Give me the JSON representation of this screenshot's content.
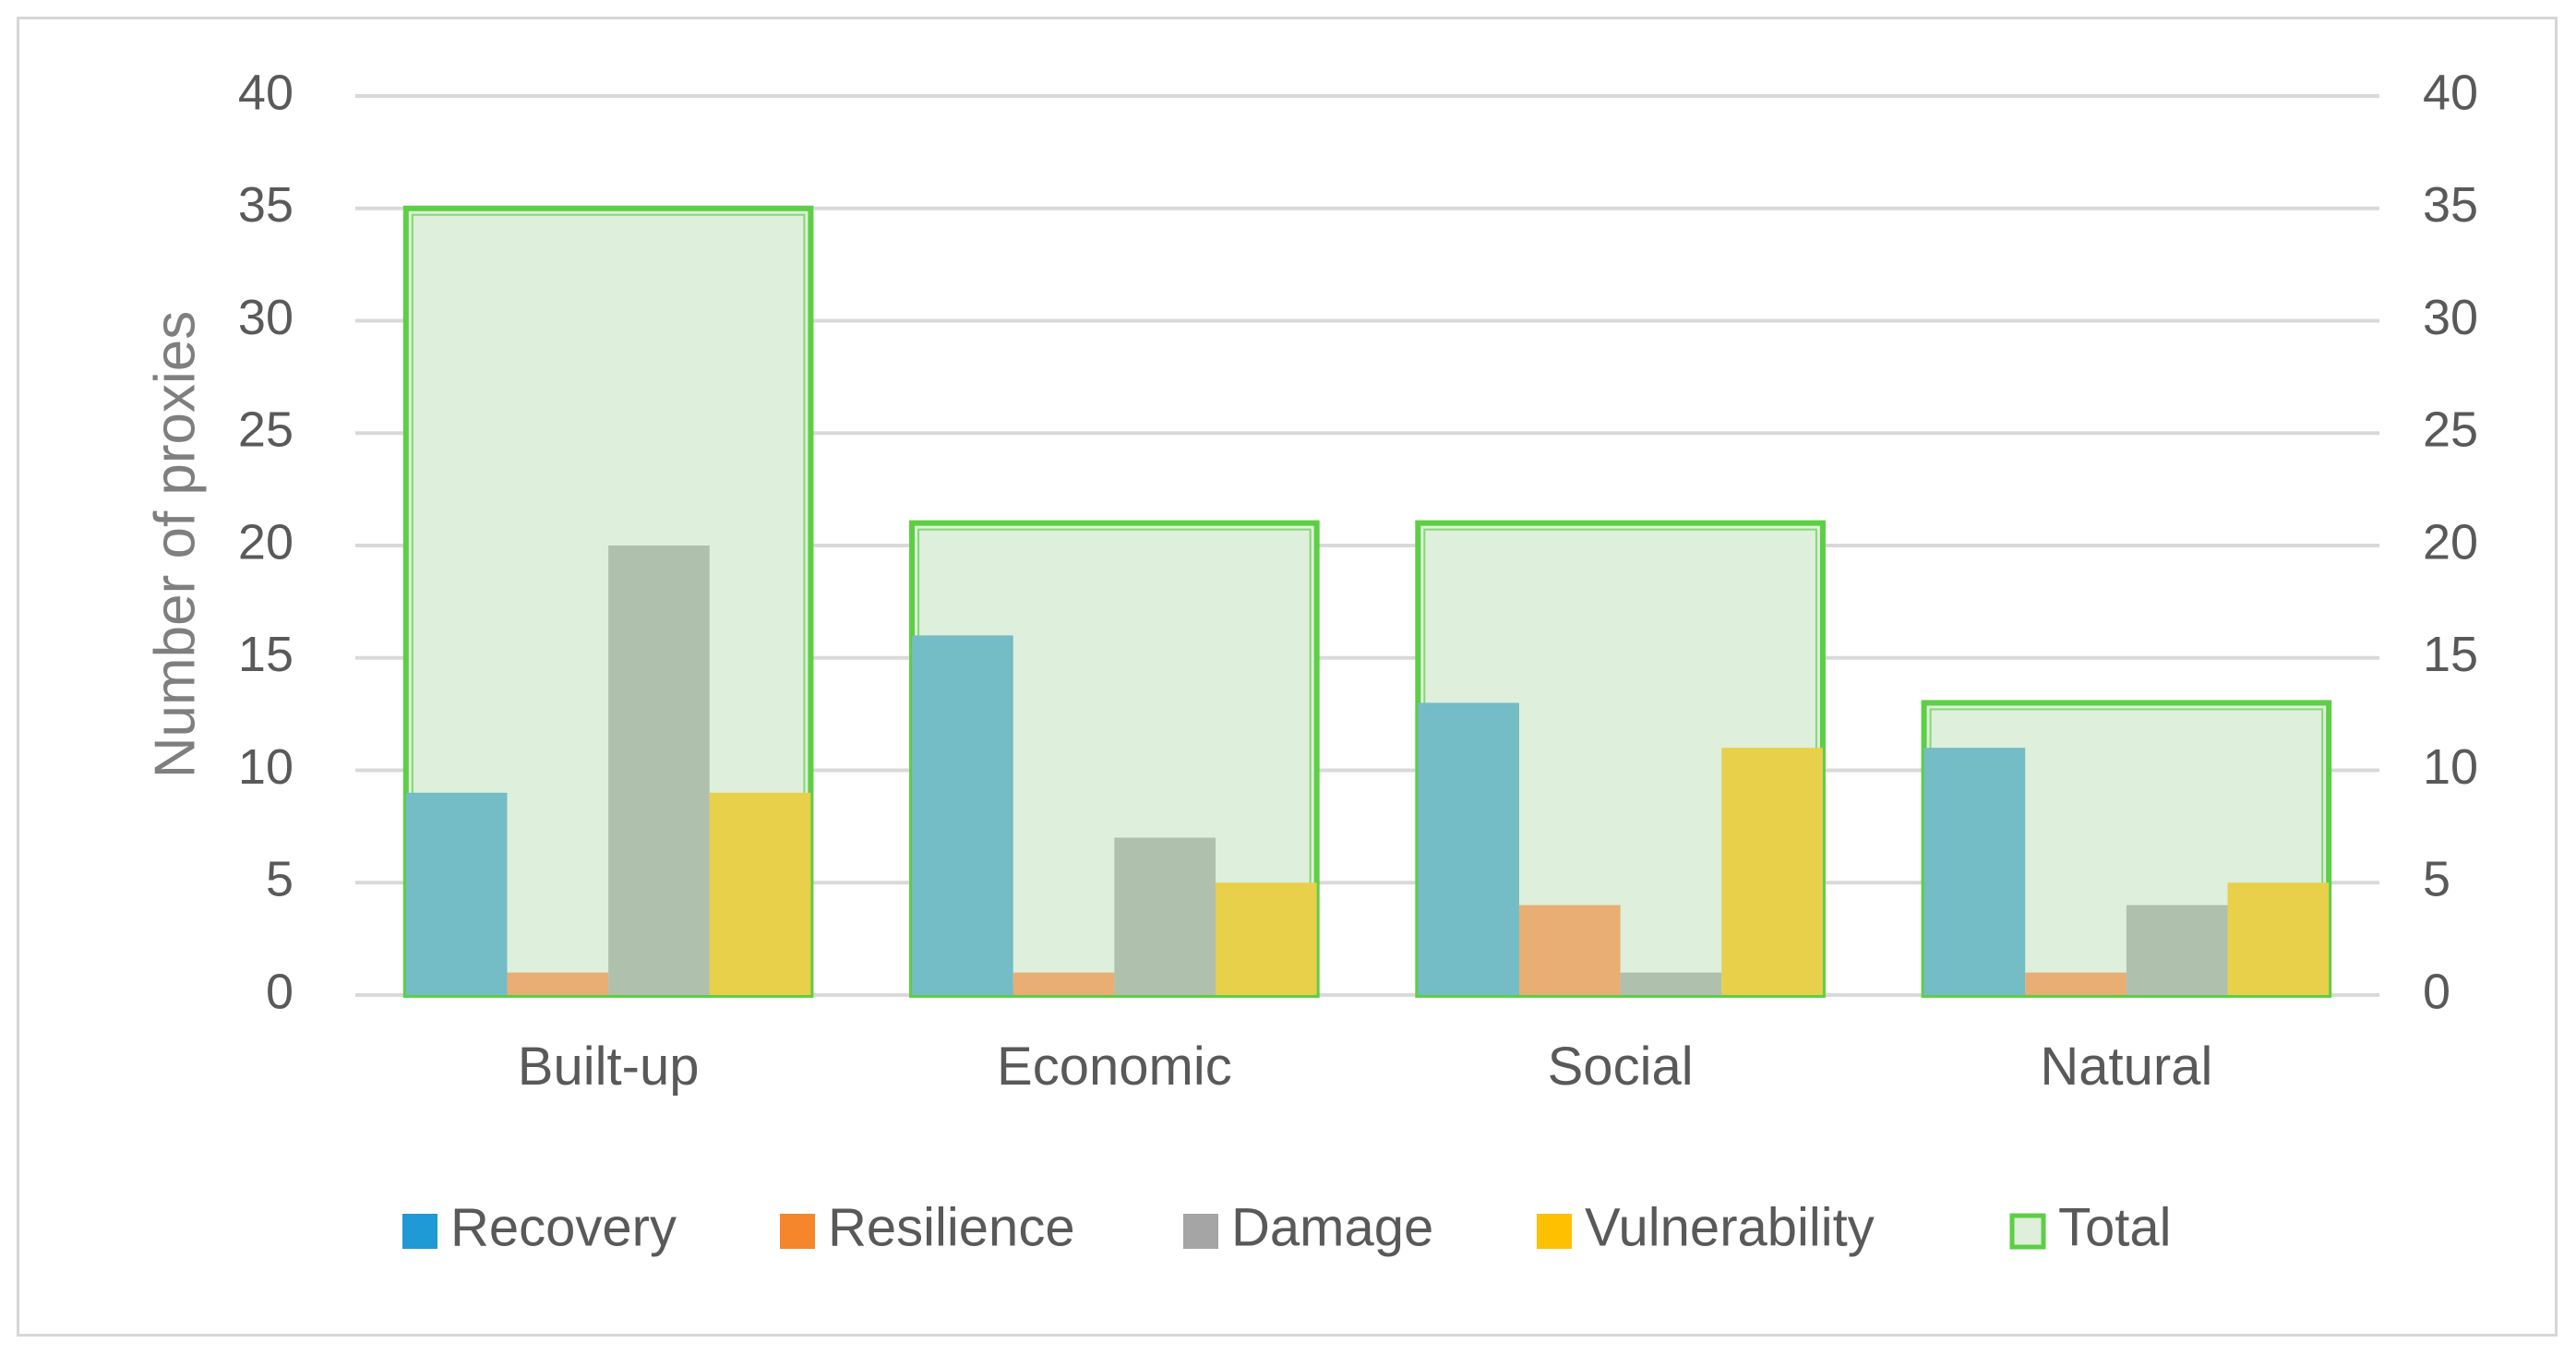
{
  "chart_data": {
    "type": "bar",
    "title": "",
    "xlabel": "",
    "ylabel": "Number of proxies",
    "ylim": [
      0,
      40
    ],
    "yticks": [
      "0",
      "5",
      "10",
      "15",
      "20",
      "25",
      "30",
      "35",
      "40"
    ],
    "grid": true,
    "secondary_axis": true,
    "legend_position": "bottom",
    "categories": [
      "Built-up",
      "Economic",
      "Social",
      "Natural"
    ],
    "series": [
      {
        "name": "Recovery",
        "values": [
          9,
          16,
          13,
          11
        ],
        "color": "#74bcc6",
        "legend_color": "#1f9ad6"
      },
      {
        "name": "Resilience",
        "values": [
          1,
          1,
          4,
          1
        ],
        "color": "#e8ae73",
        "legend_color": "#f5862b"
      },
      {
        "name": "Damage",
        "values": [
          20,
          7,
          1,
          4
        ],
        "color": "#afc1ad",
        "legend_color": "#a5a5a5"
      },
      {
        "name": "Vulnerability",
        "values": [
          9,
          5,
          11,
          5
        ],
        "color": "#e8d04a",
        "legend_color": "#ffc000"
      }
    ],
    "total": {
      "name": "Total",
      "values": [
        35,
        21,
        21,
        13
      ],
      "fill": "#deefdc",
      "stroke": "#5ccf45"
    }
  }
}
